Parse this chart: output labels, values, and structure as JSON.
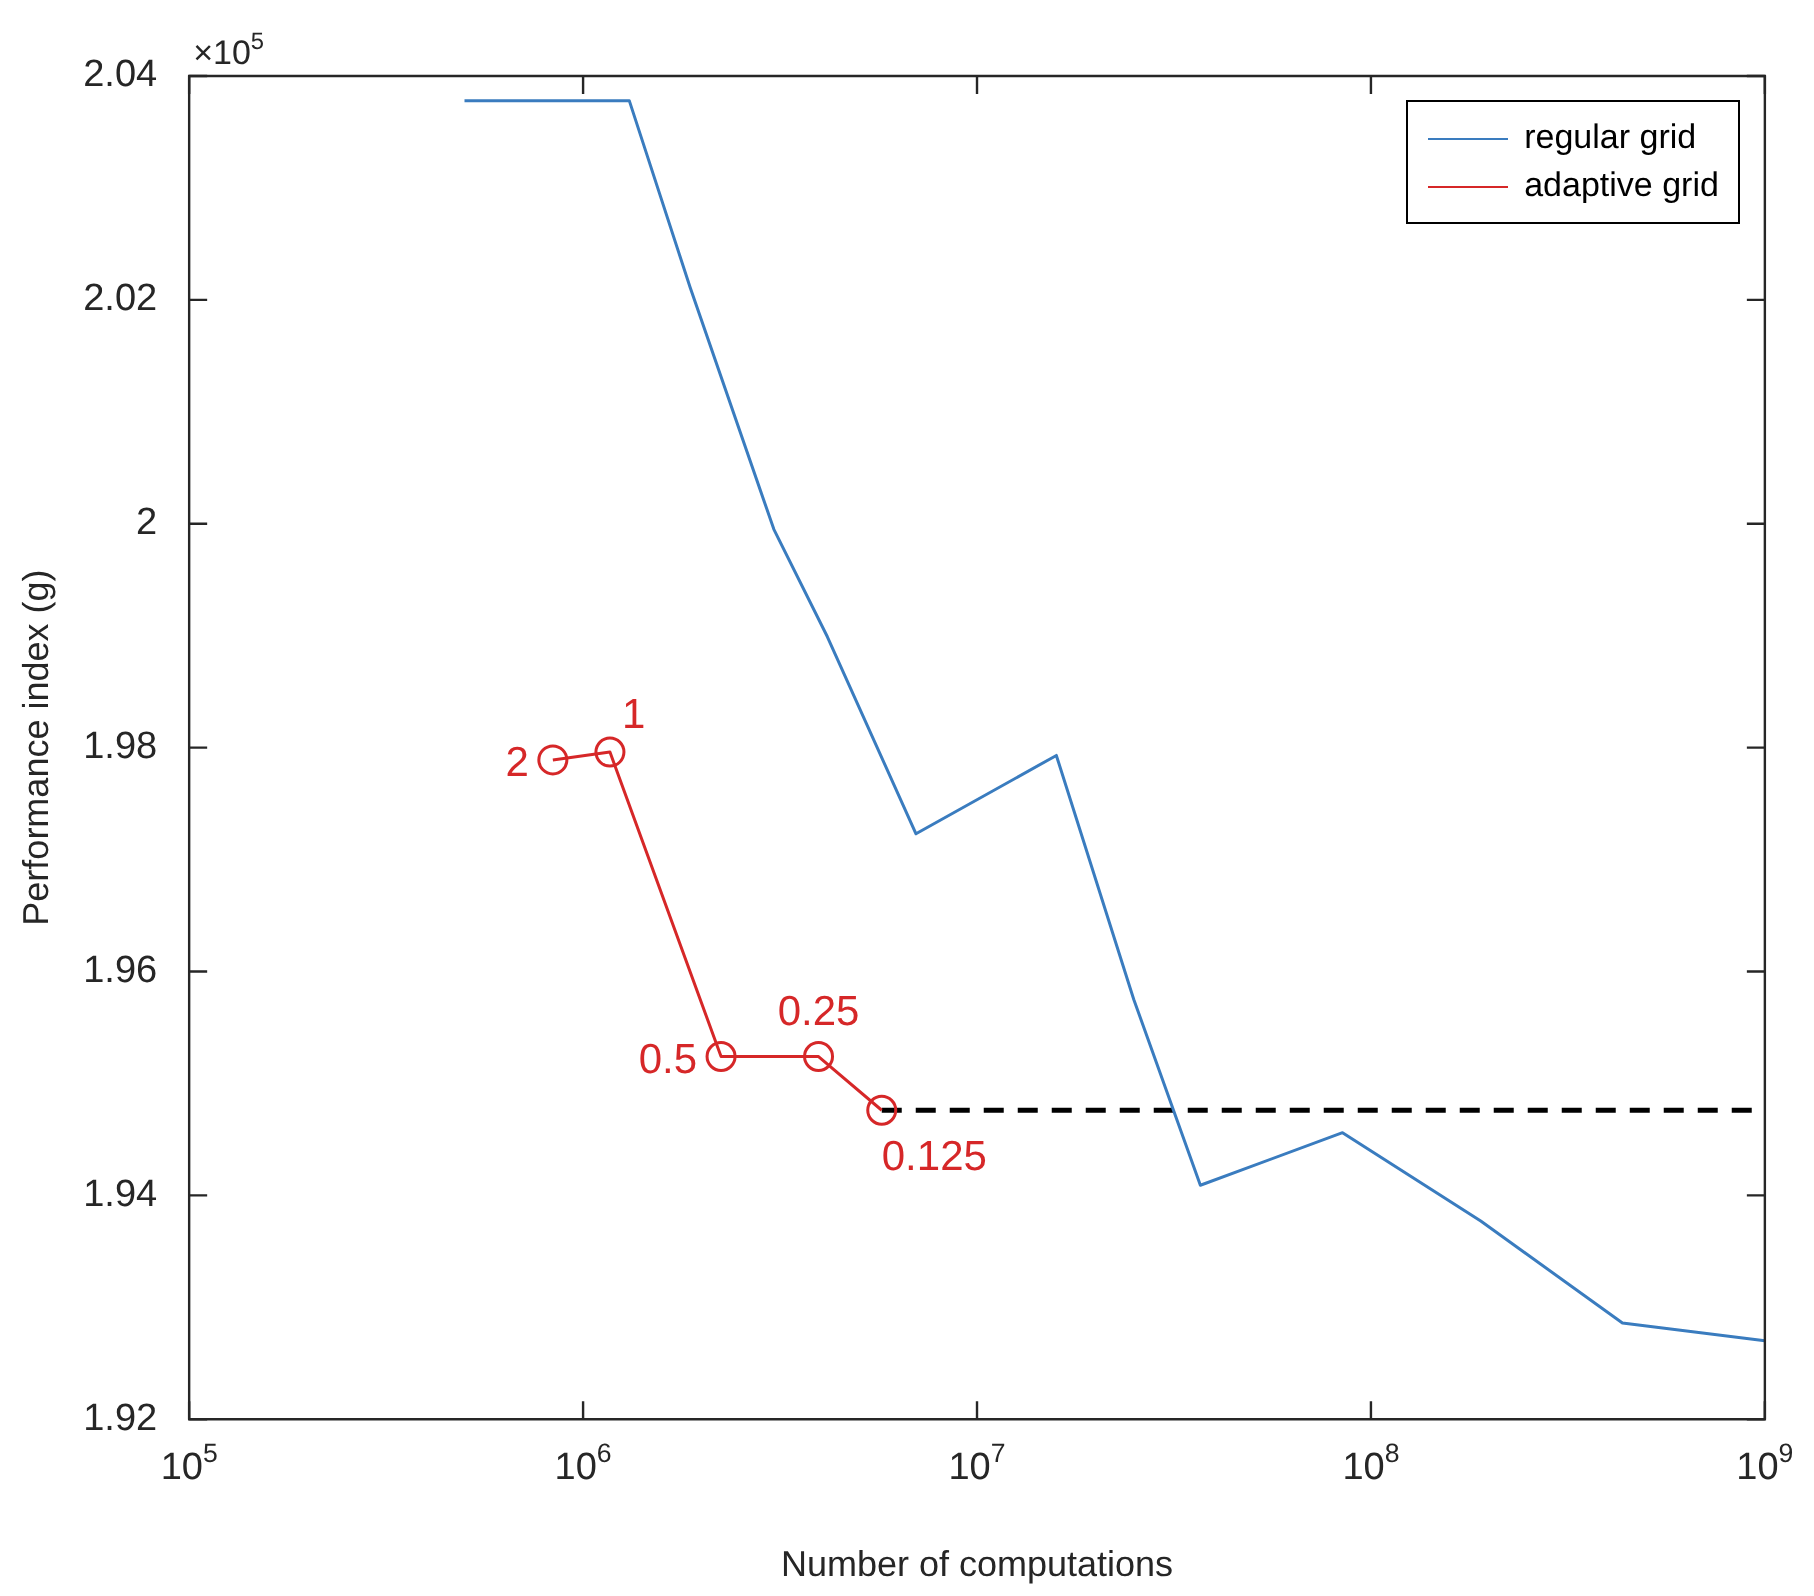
{
  "chart_data": {
    "type": "line",
    "xlabel": "Number of computations",
    "ylabel": "Performance index (g)",
    "log": "x",
    "xlim": [
      100000,
      1000000000
    ],
    "xticks": [
      {
        "value": 100000,
        "label": "10$^{5}$"
      },
      {
        "value": 1000000,
        "label": "10$^{6}$"
      },
      {
        "value": 10000000,
        "label": "10$^{7}$"
      },
      {
        "value": 100000000,
        "label": "10$^{8}$"
      },
      {
        "value": 1000000000,
        "label": "10$^{9}$"
      }
    ],
    "ylim": [
      1.92,
      2.04
    ],
    "yticks": [
      1.92,
      1.94,
      1.96,
      1.98,
      2,
      2.02,
      2.04
    ],
    "annotations": [
      "×10$^{5}$",
      {
        "text": "2",
        "x": 838000,
        "y": 1.9789
      },
      {
        "text": "1",
        "x": 1170000,
        "y": 1.9796
      },
      {
        "text": "0.5",
        "x": 2240000,
        "y": 1.9524
      },
      {
        "text": "0.25",
        "x": 3960000,
        "y": 1.9524
      },
      {
        "text": "0.125",
        "x": 5730000,
        "y": 1.9476
      }
    ],
    "legend": "top right",
    "series": [
      {
        "name": "regular grid",
        "color": "#3a7cbf",
        "marker": "none",
        "x": [
          500000,
          1310000,
          1870000,
          3050000,
          4170000,
          7000000,
          15900000,
          25000000,
          36900000,
          84700000,
          190000000,
          435000000,
          1000000000
        ],
        "values": [
          2.0378,
          2.0378,
          2.0211,
          1.9995,
          1.9899,
          1.9723,
          1.9793,
          1.9575,
          1.9409,
          1.9456,
          1.9377,
          1.9286,
          1.927
        ]
      },
      {
        "name": "adaptive grid",
        "color": "#d62728",
        "marker": "circle",
        "x": [
          838000,
          1170000,
          2240000,
          3960000,
          5730000
        ],
        "values": [
          1.9789,
          1.9796,
          1.9524,
          1.9524,
          1.9476
        ]
      },
      {
        "color": "#000000",
        "marker": "none",
        "line_style": "dashed",
        "x": [
          5730000,
          1000000000
        ],
        "values": [
          1.9476,
          1.9476
        ]
      }
    ]
  }
}
